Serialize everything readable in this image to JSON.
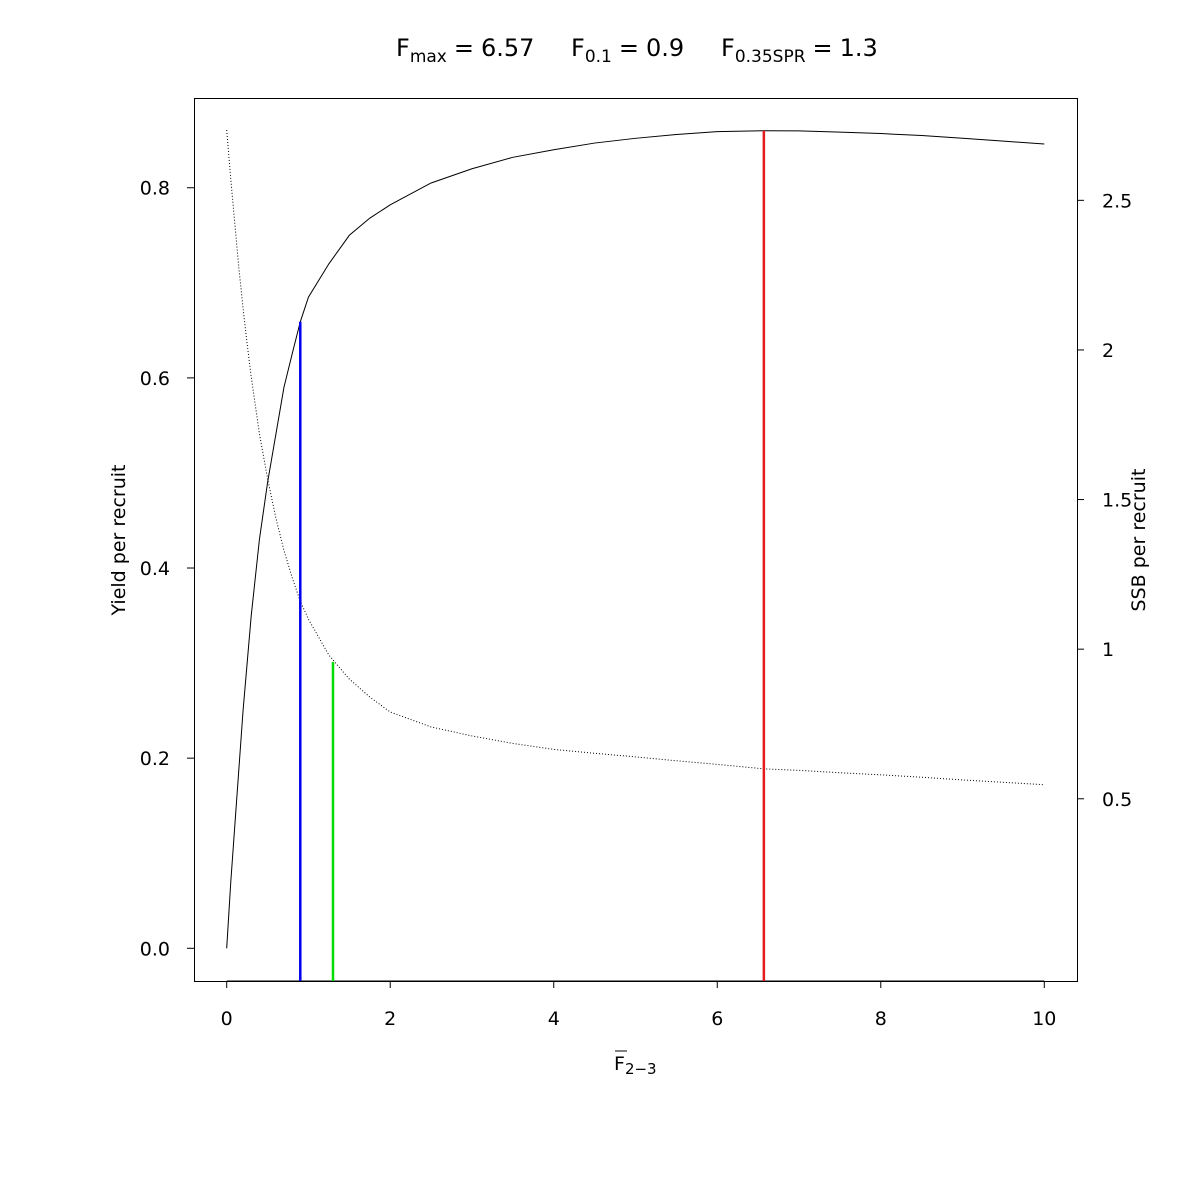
{
  "chart_data": {
    "type": "line",
    "title_parts": [
      {
        "symbol": "F",
        "subscript": "max",
        "relation": "=",
        "value": 6.57
      },
      {
        "symbol": "F",
        "subscript": "0.1",
        "relation": "=",
        "value": 0.9
      },
      {
        "symbol": "F",
        "subscript": "0.35SPR",
        "relation": "=",
        "value": 1.3
      }
    ],
    "xlabel": {
      "symbol": "F",
      "subscript": "2−3"
    },
    "ylabel": "Yield per recruit",
    "y2label": "SSB per recruit",
    "x": [
      0,
      0.05,
      0.1,
      0.15,
      0.2,
      0.25,
      0.3,
      0.4,
      0.5,
      0.6,
      0.7,
      0.8,
      0.9,
      1,
      1.25,
      1.5,
      1.75,
      2,
      2.5,
      3,
      3.5,
      4,
      4.5,
      5,
      5.5,
      6,
      6.57,
      7,
      7.5,
      8,
      8.5,
      9,
      9.5,
      10
    ],
    "series": [
      {
        "name": "Yield per recruit",
        "color": "#000000",
        "line_style": "solid",
        "axis": "y",
        "values": [
          0,
          0.07,
          0.13,
          0.19,
          0.25,
          0.3,
          0.35,
          0.43,
          0.49,
          0.54,
          0.59,
          0.625,
          0.659,
          0.685,
          0.72,
          0.75,
          0.768,
          0.782,
          0.805,
          0.82,
          0.832,
          0.84,
          0.847,
          0.852,
          0.856,
          0.859,
          0.86,
          0.8598,
          0.8585,
          0.857,
          0.855,
          0.852,
          0.849,
          0.846
        ]
      },
      {
        "name": "SSB per recruit",
        "color": "#000000",
        "line_style": "dotted",
        "axis": "y2",
        "values": [
          2.735,
          2.57,
          2.42,
          2.27,
          2.14,
          2.02,
          1.91,
          1.72,
          1.57,
          1.44,
          1.33,
          1.24,
          1.16,
          1.1,
          0.98,
          0.9,
          0.84,
          0.79,
          0.74,
          0.71,
          0.685,
          0.665,
          0.652,
          0.64,
          0.627,
          0.615,
          0.6,
          0.595,
          0.587,
          0.58,
          0.572,
          0.563,
          0.555,
          0.547
        ]
      }
    ],
    "reference_lines": [
      {
        "x": 6.57,
        "y": 0.86,
        "axis": "y",
        "color": "#e41a1c"
      },
      {
        "x": 0.9,
        "y": 0.659,
        "axis": "y",
        "color": "#0000ee"
      },
      {
        "x": 1.3,
        "y": 0.957,
        "axis": "y2",
        "color": "#00dd00"
      }
    ],
    "xlim": [
      -0.4,
      10.4
    ],
    "xticks": [
      0,
      2,
      4,
      6,
      8,
      10
    ],
    "ylim": [
      -0.0344,
      0.8944
    ],
    "yticks": [
      {
        "value": 0,
        "label": "0.0"
      },
      0.2,
      0.4,
      0.6,
      0.8
    ],
    "y2lim": [
      -0.109,
      2.842
    ],
    "y2ticks": [
      0.5,
      1,
      1.5,
      2,
      2.5
    ],
    "grid": false
  }
}
